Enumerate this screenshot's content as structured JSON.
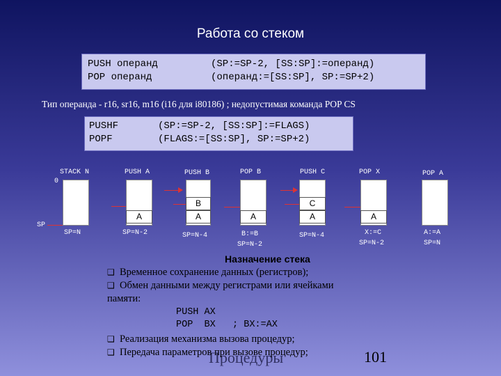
{
  "title": "Работа со стеком",
  "box1": {
    "left": [
      "PUSH операнд",
      "POP операнд"
    ],
    "right": [
      "(SP:=SP-2, [SS:SP]:=операнд)",
      "(операнд:=[SS:SP], SP:=SP+2)"
    ]
  },
  "operand_note": "Тип операнда - r16, sr16, m16 (i16 для i80186) ; недопустимая команда POP CS",
  "box2": {
    "left": [
      "PUSHF",
      "POPF"
    ],
    "right": [
      "(SP:=SP-2, [SS:SP]:=FLAGS)",
      "(FLAGS:=[SS:SP], SP:=SP+2)"
    ]
  },
  "diagram": {
    "zero_label": "0",
    "sp_label": "SP",
    "columns": [
      {
        "head": "STACK N",
        "cells": [],
        "foot": [
          "SP=N"
        ]
      },
      {
        "head": "PUSH A",
        "cells": [
          "A"
        ],
        "foot": [
          "SP=N-2"
        ]
      },
      {
        "head": "PUSH B",
        "cells": [
          "B",
          "A"
        ],
        "foot": [
          "SP=N-4"
        ]
      },
      {
        "head": "POP B",
        "cells": [
          "A"
        ],
        "foot": [
          "B:=B",
          "SP=N-2"
        ]
      },
      {
        "head": "PUSH C",
        "cells": [
          "C",
          "A"
        ],
        "foot": [
          "SP=N-4"
        ]
      },
      {
        "head": "POP X",
        "cells": [
          "A"
        ],
        "foot": [
          "X:=C",
          "SP=N-2"
        ]
      },
      {
        "head": "POP A",
        "cells": [],
        "foot": [
          "A:=A",
          "SP=N"
        ]
      }
    ]
  },
  "purpose": {
    "title": "Назначение стека",
    "bullets": [
      "Временное сохранение данных (регистров);",
      "Обмен данными между регистрами или ячейками",
      "Реализация механизма вызова процедур;",
      "Передача параметров при вызове процедур;"
    ],
    "continuation": "памяти:",
    "code": [
      "PUSH AX",
      "POP  BX   ; BX:=AX"
    ]
  },
  "footer": {
    "word": "Процедуры",
    "page": "101"
  },
  "colors": {
    "arrow": "#dd3333",
    "box_bg": "#c9c9ef"
  }
}
